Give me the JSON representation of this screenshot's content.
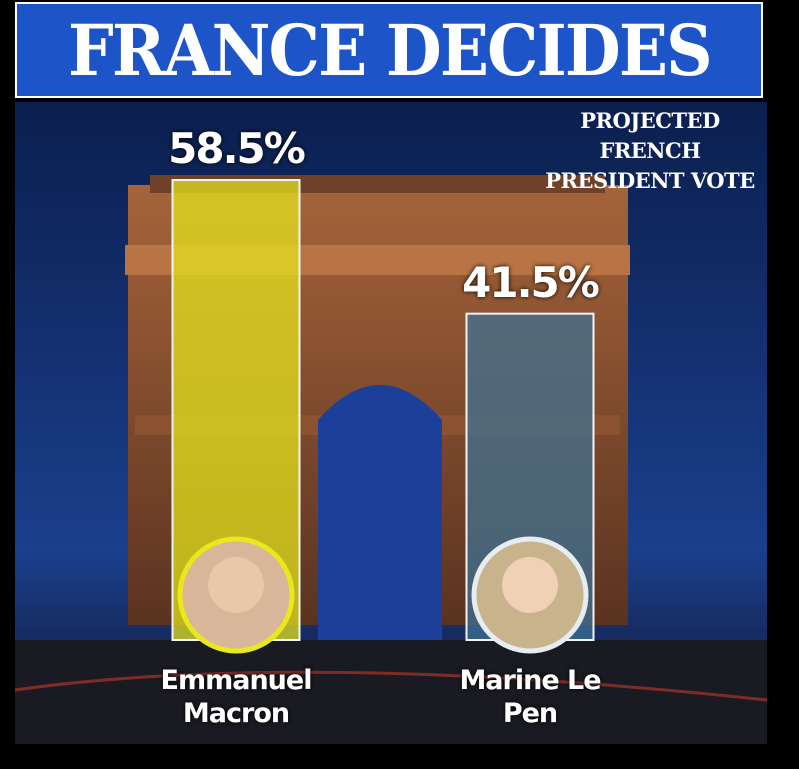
{
  "chart_data": {
    "type": "bar",
    "title": "FRANCE DECIDES",
    "subtitle": "PROJECTED FRENCH PRESIDENT VOTE",
    "categories": [
      "Emmanuel Macron",
      "Marine Le Pen"
    ],
    "values": [
      58.5,
      41.5
    ],
    "value_labels": [
      "58.5%",
      "41.5%"
    ],
    "colors": [
      "#e8e81c",
      "#3f7396"
    ]
  }
}
